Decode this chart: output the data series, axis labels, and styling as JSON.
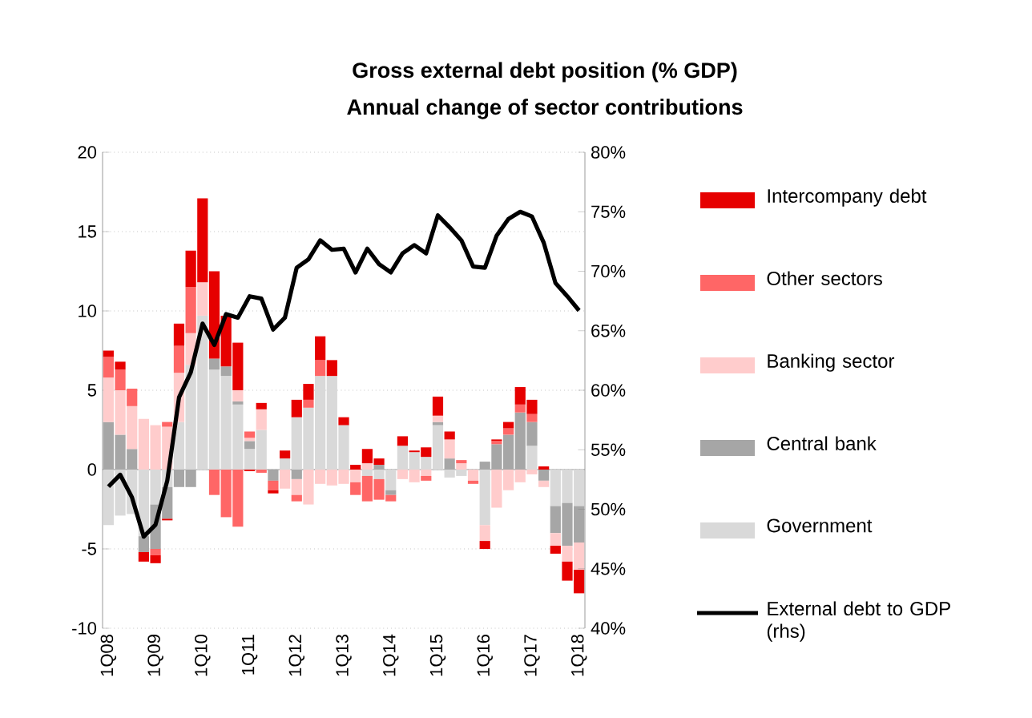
{
  "chart_data": {
    "type": "bar",
    "stacked": true,
    "title": "Gross external debt position (% GDP)",
    "subtitle": "Annual change of sector contributions",
    "categories": [
      "1Q08",
      null,
      null,
      null,
      "1Q09",
      null,
      null,
      null,
      "1Q10",
      null,
      null,
      null,
      "1Q11",
      null,
      null,
      null,
      "1Q12",
      null,
      null,
      null,
      "1Q13",
      null,
      null,
      null,
      "1Q14",
      null,
      null,
      null,
      "1Q15",
      null,
      null,
      null,
      "1Q16",
      null,
      null,
      null,
      "1Q17",
      null,
      null,
      null,
      "1Q18"
    ],
    "series": [
      {
        "name": "Government",
        "color": "#d9d9d9",
        "values": [
          -3.5,
          -2.9,
          -2.8,
          -4.2,
          -2.2,
          -1.1,
          3.0,
          6.6,
          9.7,
          6.3,
          5.9,
          4.1,
          1.3,
          2.5,
          0,
          0.7,
          3.3,
          3.9,
          5.9,
          5.9,
          2.8,
          0,
          -0.4,
          -0.6,
          -1.3,
          1.5,
          1.1,
          0.8,
          2.8,
          -0.5,
          -0.4,
          0,
          -3.5,
          0,
          0,
          0,
          1.5,
          0,
          -2.3,
          -2.1,
          -2.3
        ]
      },
      {
        "name": "Central bank",
        "color": "#a6a6a6",
        "values": [
          3.0,
          2.2,
          1.3,
          -1.0,
          -2.8,
          -2.0,
          -1.1,
          -1.1,
          0,
          0.7,
          0.6,
          0.2,
          0.5,
          0,
          -0.7,
          0,
          -0.6,
          0,
          0,
          0,
          0,
          0,
          0,
          0.3,
          -0.3,
          0,
          0,
          0,
          0.2,
          0.7,
          0,
          0,
          0.5,
          1.6,
          2.2,
          3.6,
          1.5,
          -0.7,
          -1.7,
          -2.7,
          -2.3
        ]
      },
      {
        "name": "Banking sector",
        "color": "#ffcccc",
        "values": [
          2.8,
          2.8,
          2.7,
          3.2,
          2.8,
          2.7,
          3.1,
          2.0,
          2.1,
          0,
          0,
          0.7,
          0.2,
          1.3,
          0,
          -1.2,
          -1.0,
          -2.2,
          -0.9,
          -1.0,
          -0.9,
          -0.8,
          0.4,
          0,
          0,
          -0.6,
          -0.8,
          -0.4,
          0.4,
          1.2,
          0.4,
          -0.7,
          -1.0,
          -2.4,
          -1.3,
          -0.8,
          -0.3,
          -0.4,
          -0.8,
          -1.0,
          -1.7
        ]
      },
      {
        "name": "Other sectors",
        "color": "#ff6666",
        "values": [
          1.3,
          1.3,
          1.1,
          0,
          -0.4,
          0.3,
          1.7,
          2.9,
          0,
          -1.6,
          -3.0,
          -3.6,
          0.4,
          -0.2,
          -0.6,
          0,
          -0.4,
          0.5,
          1.0,
          0,
          0,
          -0.8,
          -1.6,
          -1.3,
          -0.4,
          0,
          0,
          -0.3,
          0,
          0,
          0.2,
          -0.2,
          0,
          0.2,
          0.4,
          0.5,
          0.5,
          0,
          0,
          0,
          0
        ]
      },
      {
        "name": "Intercompany debt",
        "color": "#e60000",
        "values": [
          0.4,
          0.5,
          0,
          -0.6,
          -0.5,
          -0.1,
          1.4,
          2.3,
          5.3,
          5.5,
          3.2,
          3.0,
          -0.1,
          0.4,
          -0.2,
          0.5,
          1.1,
          1.0,
          1.5,
          1.0,
          0.5,
          0.3,
          0.9,
          0.4,
          0,
          0.6,
          0.1,
          0.6,
          1.2,
          0.5,
          0,
          0,
          -0.5,
          0.1,
          0.4,
          1.1,
          0.9,
          0.2,
          -0.5,
          -1.2,
          -1.5
        ]
      },
      {
        "name": "External debt to GDP (rhs)",
        "type": "line",
        "axis": "y2",
        "color": "#000000",
        "values": [
          51.9,
          52.9,
          51.0,
          47.7,
          48.7,
          52.4,
          59.4,
          61.5,
          65.6,
          63.8,
          66.4,
          66.1,
          67.9,
          67.7,
          65.1,
          66.1,
          70.3,
          71.0,
          72.6,
          71.8,
          71.9,
          69.9,
          71.9,
          70.6,
          69.9,
          71.5,
          72.2,
          71.5,
          74.7,
          73.7,
          72.6,
          70.4,
          70.3,
          73.0,
          74.4,
          75.0,
          74.6,
          72.4,
          69.0,
          67.9,
          66.7
        ]
      }
    ],
    "ylim": [
      -10,
      20
    ],
    "yticks": [
      -10,
      -5,
      0,
      5,
      10,
      15,
      20
    ],
    "y2lim": [
      40,
      80
    ],
    "y2ticks": [
      {
        "value": 40,
        "label": "40%"
      },
      {
        "value": 45,
        "label": "45%"
      },
      {
        "value": 50,
        "label": "50%"
      },
      {
        "value": 55,
        "label": "55%"
      },
      {
        "value": 60,
        "label": "60%"
      },
      {
        "value": 65,
        "label": "65%"
      },
      {
        "value": 70,
        "label": "70%"
      },
      {
        "value": 75,
        "label": "75%"
      },
      {
        "value": 80,
        "label": "80%"
      }
    ],
    "grid": "y",
    "legend": "right"
  }
}
